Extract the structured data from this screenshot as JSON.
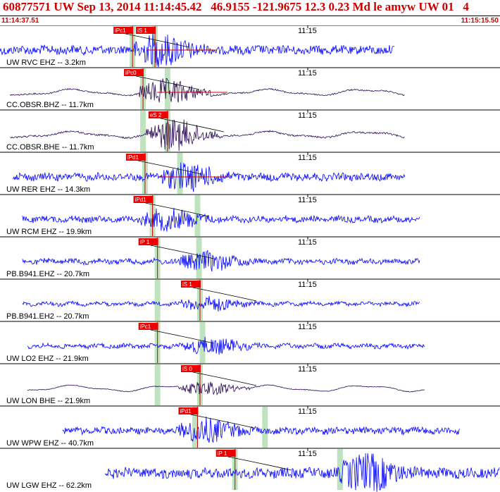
{
  "header": {
    "title": "60877571 UW Sep 13, 2014 11:14:45.42   46.9155 -121.9675 12.3 0.23 Md le amyw UW 01   4",
    "start_time": "11:14:37.51",
    "end_time": "11:15:15.50"
  },
  "colors": {
    "header_text": "#cc0000",
    "trace_blue": "#0000ff",
    "trace_dark": "#2a0a55",
    "pick_box": "#ee0000",
    "window_green": "#bfe3bf",
    "predicted_curve": "#000000",
    "amplitude_line": "#cc0000"
  },
  "chart_data": {
    "type": "line",
    "x_axis": {
      "start": "11:14:37.51",
      "end": "11:15:15.50",
      "tick_label": "11:15"
    },
    "grid": false,
    "series": [
      {
        "name": "UW RVC EHZ -- 3.2km",
        "color": "blue",
        "start": 0.0,
        "end": 0.79,
        "picks": [
          {
            "label": "iPc1",
            "t": 0.265
          },
          {
            "label": "iS 1",
            "t": 0.31
          }
        ],
        "windows": [
          0.265,
          0.31
        ],
        "amp": 12,
        "burst": 0.31,
        "redline": true
      },
      {
        "name": "CC.OBSR.BHZ -- 11.7km",
        "color": "dark",
        "start": 0.02,
        "end": 0.81,
        "picks": [
          {
            "label": "iPc0",
            "t": 0.286
          }
        ],
        "windows": [
          0.286,
          0.335
        ],
        "amp": 10,
        "burst": 0.32,
        "redline": true
      },
      {
        "name": "CC.OBSR.BHE -- 11.7km",
        "color": "dark",
        "start": 0.02,
        "end": 0.81,
        "picks": [
          {
            "label": "eS 2",
            "t": 0.335
          }
        ],
        "windows": [
          0.286,
          0.335
        ],
        "amp": 12,
        "burst": 0.335,
        "redline": false
      },
      {
        "name": "UW RER EHZ -- 14.3km",
        "color": "blue",
        "start": 0.025,
        "end": 0.81,
        "picks": [
          {
            "label": "iPd1",
            "t": 0.29
          }
        ],
        "windows": [
          0.29,
          0.36
        ],
        "amp": 10,
        "burst": 0.36,
        "redline": true
      },
      {
        "name": "UW RCM EHZ -- 19.9km",
        "color": "blue",
        "start": 0.045,
        "end": 0.84,
        "picks": [
          {
            "label": "iPd1",
            "t": 0.305
          }
        ],
        "windows": [
          0.305,
          0.395
        ],
        "amp": 8,
        "burst": 0.325,
        "redline": false
      },
      {
        "name": "PB.B941.EHZ -- 20.7km",
        "color": "blue",
        "start": 0.045,
        "end": 0.84,
        "picks": [
          {
            "label": "iP 1",
            "t": 0.315
          }
        ],
        "windows": [
          0.315,
          0.398
        ],
        "amp": 7,
        "burst": 0.4,
        "redline": false
      },
      {
        "name": "PB.B941.EH2 -- 20.7km",
        "color": "blue",
        "start": 0.045,
        "end": 0.84,
        "picks": [
          {
            "label": "iS 1",
            "t": 0.4
          }
        ],
        "windows": [
          0.315,
          0.4
        ],
        "amp": 5,
        "burst": 0.405,
        "redline": false
      },
      {
        "name": "UW LO2 EHZ -- 21.9km",
        "color": "blue",
        "start": 0.055,
        "end": 0.85,
        "picks": [
          {
            "label": "iPc1",
            "t": 0.315
          }
        ],
        "windows": [
          0.315,
          0.405
        ],
        "amp": 6,
        "burst": 0.41,
        "redline": false
      },
      {
        "name": "UW LON BHE -- 21.9km",
        "color": "dark",
        "start": 0.055,
        "end": 0.85,
        "picks": [
          {
            "label": "iS 0",
            "t": 0.4
          }
        ],
        "windows": [
          0.315,
          0.4
        ],
        "amp": 5,
        "burst": 0.4,
        "redline": false
      },
      {
        "name": "UW WPW EHZ -- 40.7km",
        "color": "blue",
        "start": 0.125,
        "end": 0.92,
        "picks": [
          {
            "label": "iPd1",
            "t": 0.395
          }
        ],
        "windows": [
          0.39,
          0.53
        ],
        "amp": 9,
        "burst": 0.4,
        "redline": false
      },
      {
        "name": "UW LGW EHZ -- 62.2km",
        "color": "blue",
        "start": 0.21,
        "end": 1.0,
        "picks": [
          {
            "label": "iP 1",
            "t": 0.47
          }
        ],
        "windows": [
          0.47,
          0.68
        ],
        "amp": 14,
        "burst": 0.72,
        "redline": false
      }
    ]
  }
}
